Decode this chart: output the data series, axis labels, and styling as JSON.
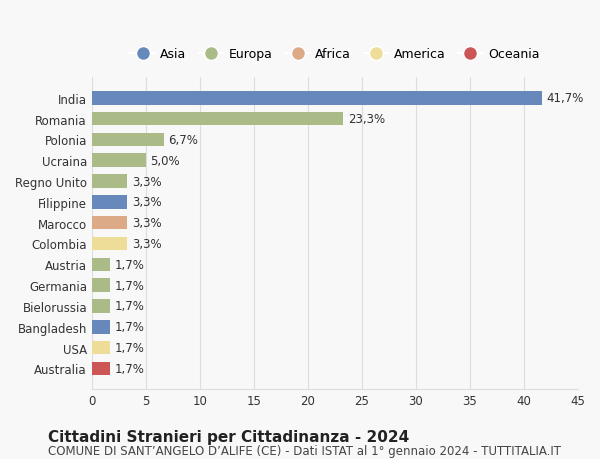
{
  "categories": [
    "India",
    "Romania",
    "Polonia",
    "Ucraina",
    "Regno Unito",
    "Filippine",
    "Marocco",
    "Colombia",
    "Austria",
    "Germania",
    "Bielorussia",
    "Bangladesh",
    "USA",
    "Australia"
  ],
  "values": [
    41.7,
    23.3,
    6.7,
    5.0,
    3.3,
    3.3,
    3.3,
    3.3,
    1.7,
    1.7,
    1.7,
    1.7,
    1.7,
    1.7
  ],
  "labels": [
    "41,7%",
    "23,3%",
    "6,7%",
    "5,0%",
    "3,3%",
    "3,3%",
    "3,3%",
    "3,3%",
    "1,7%",
    "1,7%",
    "1,7%",
    "1,7%",
    "1,7%",
    "1,7%"
  ],
  "continents": [
    "Asia",
    "Europa",
    "Europa",
    "Europa",
    "Europa",
    "Asia",
    "Africa",
    "America",
    "Europa",
    "Europa",
    "Europa",
    "Asia",
    "America",
    "Oceania"
  ],
  "colors": {
    "Asia": "#6688bb",
    "Europa": "#aabb88",
    "Africa": "#ddaa88",
    "America": "#eedd99",
    "Oceania": "#cc5555"
  },
  "legend_order": [
    "Asia",
    "Europa",
    "Africa",
    "America",
    "Oceania"
  ],
  "title": "Cittadini Stranieri per Cittadinanza - 2024",
  "subtitle": "COMUNE DI SANT’ANGELO D’ALIFE (CE) - Dati ISTAT al 1° gennaio 2024 - TUTTITALIA.IT",
  "xlim": [
    0,
    45
  ],
  "xticks": [
    0,
    5,
    10,
    15,
    20,
    25,
    30,
    35,
    40,
    45
  ],
  "background_color": "#f8f8f8",
  "grid_color": "#dddddd",
  "bar_height": 0.65,
  "label_fontsize": 8.5,
  "tick_fontsize": 8.5,
  "title_fontsize": 11,
  "subtitle_fontsize": 8.5
}
